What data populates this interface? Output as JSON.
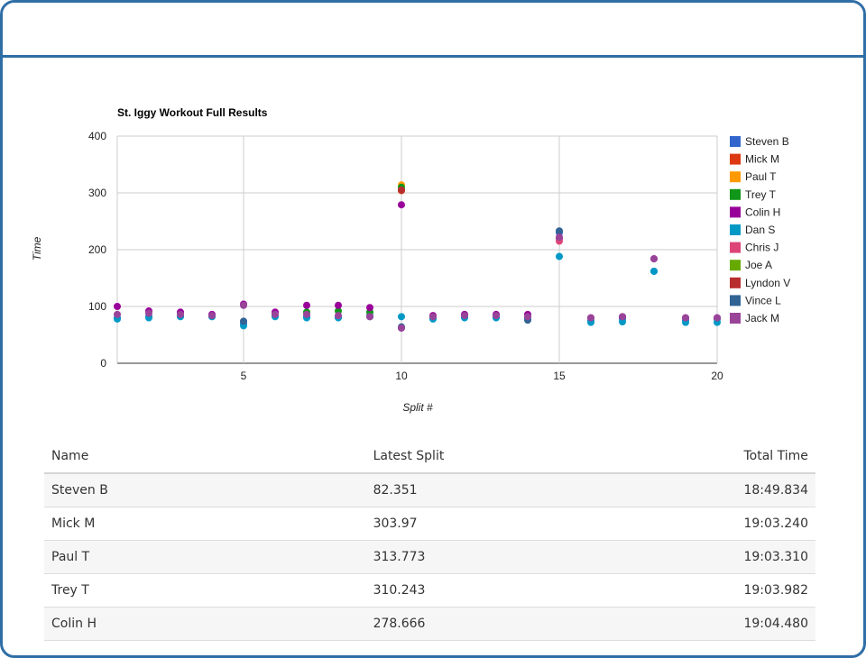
{
  "chart_data": {
    "type": "scatter",
    "title": "St. Iggy Workout Full Results",
    "xlabel": "Split #",
    "ylabel": "Time",
    "xlim": [
      1,
      20
    ],
    "ylim": [
      0,
      400
    ],
    "x_ticks": [
      "5",
      "10",
      "15",
      "20"
    ],
    "y_ticks": [
      "0",
      "100",
      "200",
      "300",
      "400"
    ],
    "grid": true,
    "legend_position": "right",
    "series": [
      {
        "name": "Steven B",
        "color": "#3366cc",
        "points": [
          [
            1,
            80
          ],
          [
            2,
            82
          ],
          [
            3,
            83
          ],
          [
            4,
            83
          ],
          [
            5,
            70
          ],
          [
            6,
            84
          ],
          [
            7,
            82
          ],
          [
            8,
            82
          ],
          [
            9,
            84
          ],
          [
            10,
            62
          ],
          [
            11,
            80
          ],
          [
            12,
            82
          ],
          [
            13,
            81
          ],
          [
            14,
            80
          ],
          [
            15,
            230
          ],
          [
            16,
            75
          ],
          [
            17,
            78
          ],
          [
            18,
            162
          ],
          [
            19,
            76
          ],
          [
            20,
            78
          ]
        ]
      },
      {
        "name": "Mick M",
        "color": "#dc3912",
        "points": [
          [
            10,
            304
          ]
        ]
      },
      {
        "name": "Paul T",
        "color": "#ff9900",
        "points": [
          [
            10,
            314
          ]
        ]
      },
      {
        "name": "Trey T",
        "color": "#109618",
        "points": [
          [
            7,
            90
          ],
          [
            8,
            92
          ],
          [
            9,
            90
          ],
          [
            10,
            310
          ]
        ]
      },
      {
        "name": "Colin H",
        "color": "#990099",
        "points": [
          [
            1,
            100
          ],
          [
            2,
            92
          ],
          [
            3,
            90
          ],
          [
            4,
            86
          ],
          [
            5,
            104
          ],
          [
            6,
            90
          ],
          [
            7,
            102
          ],
          [
            8,
            102
          ],
          [
            9,
            98
          ],
          [
            10,
            279
          ],
          [
            11,
            84
          ],
          [
            12,
            86
          ],
          [
            13,
            86
          ],
          [
            14,
            86
          ],
          [
            15,
            220
          ],
          [
            16,
            80
          ],
          [
            17,
            82
          ],
          [
            18,
            184
          ],
          [
            19,
            80
          ],
          [
            20,
            80
          ]
        ]
      },
      {
        "name": "Dan S",
        "color": "#0099c6",
        "points": [
          [
            1,
            78
          ],
          [
            2,
            80
          ],
          [
            3,
            82
          ],
          [
            4,
            82
          ],
          [
            5,
            66
          ],
          [
            6,
            82
          ],
          [
            7,
            80
          ],
          [
            8,
            80
          ],
          [
            9,
            82
          ],
          [
            10,
            82
          ],
          [
            11,
            78
          ],
          [
            12,
            80
          ],
          [
            13,
            80
          ],
          [
            14,
            78
          ],
          [
            15,
            188
          ],
          [
            16,
            72
          ],
          [
            17,
            73
          ],
          [
            18,
            162
          ],
          [
            19,
            72
          ],
          [
            20,
            72
          ]
        ]
      },
      {
        "name": "Chris J",
        "color": "#dd4477",
        "points": [
          [
            15,
            215
          ]
        ]
      },
      {
        "name": "Joe A",
        "color": "#66aa00",
        "points": []
      },
      {
        "name": "Lyndon V",
        "color": "#b82e2e",
        "points": [
          [
            10,
            305
          ]
        ]
      },
      {
        "name": "Vince L",
        "color": "#316395",
        "points": [
          [
            5,
            74
          ],
          [
            10,
            64
          ],
          [
            14,
            76
          ],
          [
            15,
            233
          ]
        ]
      },
      {
        "name": "Jack M",
        "color": "#994499",
        "points": [
          [
            1,
            86
          ],
          [
            2,
            88
          ],
          [
            3,
            86
          ],
          [
            4,
            84
          ],
          [
            5,
            102
          ],
          [
            6,
            86
          ],
          [
            7,
            86
          ],
          [
            8,
            84
          ],
          [
            9,
            82
          ],
          [
            10,
            62
          ],
          [
            11,
            82
          ],
          [
            12,
            84
          ],
          [
            13,
            84
          ],
          [
            14,
            82
          ],
          [
            15,
            222
          ],
          [
            16,
            80
          ],
          [
            17,
            82
          ],
          [
            18,
            184
          ],
          [
            19,
            80
          ],
          [
            20,
            80
          ]
        ]
      }
    ]
  },
  "table": {
    "headers": [
      "Name",
      "Latest Split",
      "Total Time"
    ],
    "rows": [
      {
        "name": "Steven B",
        "split": "82.351",
        "total": "18:49.834"
      },
      {
        "name": "Mick M",
        "split": "303.97",
        "total": "19:03.240"
      },
      {
        "name": "Paul T",
        "split": "313.773",
        "total": "19:03.310"
      },
      {
        "name": "Trey T",
        "split": "310.243",
        "total": "19:03.982"
      },
      {
        "name": "Colin H",
        "split": "278.666",
        "total": "19:04.480"
      }
    ]
  }
}
